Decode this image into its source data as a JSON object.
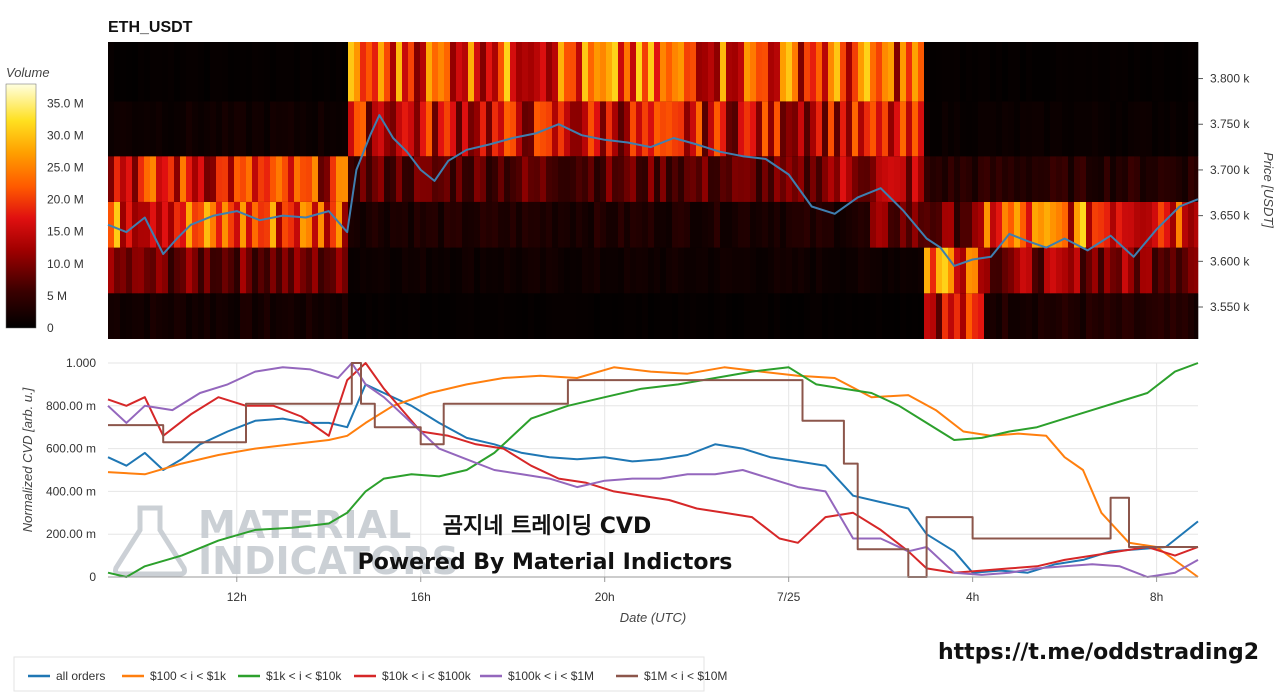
{
  "header": {
    "title": "ETH_USDT"
  },
  "overlay": {
    "line1": "곰지네 트레이딩 CVD",
    "line2": "Powered By Material Indictors",
    "url": "https://t.me/oddstrading2"
  },
  "watermark": {
    "line1": "MATERIAL",
    "line2": "INDICATORS"
  },
  "colors": {
    "all_orders": "#1f77b4",
    "b100_1k": "#ff7f0e",
    "b1k_10k": "#2ca02c",
    "b10k_100k": "#d62728",
    "b100k_1m": "#9467bd",
    "b1m_10m": "#8c564b",
    "price_line": "#3f7fb0"
  },
  "chart_data": [
    {
      "type": "heatmap",
      "title": "ETH_USDT",
      "ylabel": "Price [USDT]",
      "y_ticks": [
        "3.550 k",
        "3.600 k",
        "3.650 k",
        "3.700 k",
        "3.750 k",
        "3.800 k"
      ],
      "y_tick_values": [
        3550,
        3600,
        3650,
        3700,
        3750,
        3800
      ],
      "ylim": [
        3515,
        3840
      ],
      "x_range_hours": [
        9.2,
        32.9
      ],
      "price_bins": [
        [
          3515,
          3565
        ],
        [
          3565,
          3615
        ],
        [
          3615,
          3665
        ],
        [
          3665,
          3715
        ],
        [
          3715,
          3775
        ],
        [
          3775,
          3840
        ]
      ],
      "colorbar": {
        "label": "Volume",
        "ticks": [
          "0",
          "5 M",
          "10.0 M",
          "15.0 M",
          "20.0 M",
          "25.0 M",
          "30.0 M",
          "35.0 M"
        ],
        "tick_values": [
          0,
          5,
          10,
          15,
          20,
          25,
          30,
          35
        ],
        "range": [
          0,
          38
        ]
      },
      "bin_volume_profile": [
        {
          "bin": 0,
          "segments": [
            {
              "x0": 9.2,
              "x1": 14.4,
              "v": 2
            },
            {
              "x0": 14.4,
              "x1": 26.9,
              "v": 0.5
            },
            {
              "x0": 26.9,
              "x1": 28.2,
              "v": 16
            },
            {
              "x0": 28.2,
              "x1": 32.9,
              "v": 3
            }
          ]
        },
        {
          "bin": 1,
          "segments": [
            {
              "x0": 9.2,
              "x1": 14.4,
              "v": 9
            },
            {
              "x0": 14.4,
              "x1": 26.9,
              "v": 1.5
            },
            {
              "x0": 26.9,
              "x1": 28.2,
              "v": 28
            },
            {
              "x0": 28.2,
              "x1": 32.9,
              "v": 11
            }
          ]
        },
        {
          "bin": 2,
          "segments": [
            {
              "x0": 9.2,
              "x1": 14.4,
              "v": 22
            },
            {
              "x0": 14.4,
              "x1": 25.8,
              "v": 3
            },
            {
              "x0": 25.8,
              "x1": 28.2,
              "v": 9
            },
            {
              "x0": 28.2,
              "x1": 32.9,
              "v": 22
            }
          ]
        },
        {
          "bin": 3,
          "segments": [
            {
              "x0": 9.2,
              "x1": 14.4,
              "v": 18
            },
            {
              "x0": 14.4,
              "x1": 24.6,
              "v": 8
            },
            {
              "x0": 24.6,
              "x1": 26.9,
              "v": 13
            },
            {
              "x0": 26.9,
              "x1": 32.9,
              "v": 4
            }
          ]
        },
        {
          "bin": 4,
          "segments": [
            {
              "x0": 9.2,
              "x1": 14.4,
              "v": 1.5
            },
            {
              "x0": 14.4,
              "x1": 26.9,
              "v": 16
            },
            {
              "x0": 26.9,
              "x1": 32.9,
              "v": 1
            }
          ]
        },
        {
          "bin": 5,
          "segments": [
            {
              "x0": 9.2,
              "x1": 14.4,
              "v": 0.5
            },
            {
              "x0": 14.4,
              "x1": 26.9,
              "v": 22
            },
            {
              "x0": 26.9,
              "x1": 32.9,
              "v": 0.5
            }
          ]
        }
      ],
      "price_series": {
        "x": [
          9.2,
          9.6,
          10.0,
          10.4,
          10.7,
          11.0,
          11.5,
          12.0,
          12.5,
          13.0,
          13.5,
          14.0,
          14.4,
          14.6,
          14.9,
          15.1,
          15.4,
          15.7,
          16.0,
          16.3,
          16.6,
          17.0,
          17.5,
          18.0,
          18.5,
          19.0,
          19.5,
          20.0,
          20.5,
          21.0,
          21.5,
          22.0,
          22.5,
          23.0,
          23.5,
          24.0,
          24.5,
          25.0,
          25.5,
          26.0,
          26.5,
          27.0,
          27.3,
          27.6,
          28.0,
          28.4,
          28.8,
          29.2,
          29.6,
          30.0,
          30.5,
          31.0,
          31.5,
          32.0,
          32.5,
          32.9
        ],
        "y": [
          3640,
          3632,
          3648,
          3608,
          3625,
          3640,
          3650,
          3655,
          3645,
          3650,
          3648,
          3655,
          3632,
          3700,
          3738,
          3760,
          3735,
          3720,
          3700,
          3688,
          3710,
          3722,
          3728,
          3735,
          3740,
          3750,
          3738,
          3733,
          3730,
          3725,
          3735,
          3728,
          3720,
          3715,
          3712,
          3695,
          3660,
          3652,
          3670,
          3680,
          3655,
          3625,
          3615,
          3595,
          3602,
          3605,
          3630,
          3622,
          3615,
          3625,
          3612,
          3628,
          3605,
          3635,
          3660,
          3668
        ]
      }
    },
    {
      "type": "line",
      "xlabel": "Date (UTC)",
      "ylabel": "Normalized CVD [arb. u.]",
      "x_range_hours": [
        9.2,
        32.9
      ],
      "ylim": [
        0,
        1
      ],
      "x_ticks": [
        {
          "label": "12h",
          "value": 12
        },
        {
          "label": "16h",
          "value": 16
        },
        {
          "label": "20h",
          "value": 20
        },
        {
          "label": "7/25",
          "value": 24
        },
        {
          "label": "4h",
          "value": 28
        },
        {
          "label": "8h",
          "value": 32
        }
      ],
      "y_ticks": [
        {
          "label": "0",
          "value": 0
        },
        {
          "label": "200.00 m",
          "value": 0.2
        },
        {
          "label": "400.00 m",
          "value": 0.4
        },
        {
          "label": "600.00 m",
          "value": 0.6
        },
        {
          "label": "800.00 m",
          "value": 0.8
        },
        {
          "label": "1.000",
          "value": 1.0
        }
      ],
      "series": [
        {
          "name": "all orders",
          "color_key": "all_orders",
          "x": [
            9.2,
            9.6,
            10.0,
            10.4,
            10.8,
            11.2,
            11.8,
            12.4,
            13.0,
            13.5,
            14.0,
            14.4,
            14.8,
            15.2,
            15.8,
            16.4,
            17.0,
            17.6,
            18.2,
            18.8,
            19.4,
            20.0,
            20.6,
            21.2,
            21.8,
            22.4,
            23.0,
            23.6,
            24.2,
            24.8,
            25.4,
            26.0,
            26.6,
            27.0,
            27.6,
            28.0,
            28.6,
            29.2,
            29.8,
            30.4,
            31.0,
            31.6,
            32.2,
            32.9
          ],
          "y": [
            0.56,
            0.52,
            0.58,
            0.5,
            0.55,
            0.62,
            0.68,
            0.73,
            0.74,
            0.72,
            0.72,
            0.7,
            0.9,
            0.86,
            0.8,
            0.72,
            0.65,
            0.62,
            0.58,
            0.56,
            0.55,
            0.56,
            0.54,
            0.55,
            0.57,
            0.62,
            0.6,
            0.56,
            0.54,
            0.52,
            0.38,
            0.35,
            0.32,
            0.2,
            0.12,
            0.02,
            0.03,
            0.02,
            0.06,
            0.08,
            0.12,
            0.13,
            0.14,
            0.26
          ]
        },
        {
          "name": "$100 < i < $1k",
          "color_key": "b100_1k",
          "x": [
            9.2,
            10.0,
            10.8,
            11.6,
            12.4,
            13.2,
            14.0,
            14.4,
            14.8,
            15.4,
            16.2,
            17.0,
            17.8,
            18.6,
            19.4,
            20.2,
            21.0,
            21.8,
            22.6,
            23.4,
            24.2,
            25.0,
            25.8,
            26.6,
            27.2,
            27.8,
            28.4,
            29.0,
            29.6,
            30.0,
            30.4,
            30.8,
            31.4,
            32.0,
            32.9
          ],
          "y": [
            0.49,
            0.48,
            0.53,
            0.57,
            0.6,
            0.62,
            0.64,
            0.66,
            0.72,
            0.8,
            0.86,
            0.9,
            0.93,
            0.94,
            0.93,
            0.98,
            0.96,
            0.95,
            0.98,
            0.96,
            0.94,
            0.93,
            0.84,
            0.85,
            0.78,
            0.68,
            0.66,
            0.67,
            0.66,
            0.56,
            0.5,
            0.3,
            0.16,
            0.14,
            0.0
          ]
        },
        {
          "name": "$1k < i < $10k",
          "color_key": "b1k_10k",
          "x": [
            9.2,
            9.6,
            10.0,
            10.8,
            11.6,
            12.4,
            13.2,
            14.0,
            14.4,
            14.8,
            15.2,
            15.8,
            16.4,
            17.0,
            17.6,
            18.4,
            19.2,
            20.0,
            20.8,
            21.6,
            22.4,
            23.2,
            24.0,
            24.6,
            25.2,
            25.8,
            26.4,
            27.0,
            27.6,
            28.2,
            28.8,
            29.4,
            30.0,
            30.6,
            31.2,
            31.8,
            32.4,
            32.9
          ],
          "y": [
            0.02,
            0.0,
            0.05,
            0.1,
            0.17,
            0.22,
            0.23,
            0.25,
            0.3,
            0.4,
            0.46,
            0.48,
            0.47,
            0.5,
            0.58,
            0.74,
            0.8,
            0.84,
            0.88,
            0.9,
            0.93,
            0.96,
            0.98,
            0.9,
            0.88,
            0.86,
            0.8,
            0.72,
            0.64,
            0.65,
            0.68,
            0.7,
            0.74,
            0.78,
            0.82,
            0.86,
            0.96,
            1.0
          ]
        },
        {
          "name": "$10k < i < $100k",
          "color_key": "b10k_100k",
          "x": [
            9.2,
            9.6,
            10.0,
            10.4,
            11.0,
            11.6,
            12.2,
            12.8,
            13.4,
            14.0,
            14.4,
            14.8,
            15.2,
            15.6,
            16.0,
            16.6,
            17.2,
            17.8,
            18.4,
            19.0,
            19.6,
            20.2,
            20.8,
            21.4,
            22.0,
            22.6,
            23.2,
            23.8,
            24.2,
            24.8,
            25.4,
            26.0,
            26.6,
            27.0,
            27.6,
            28.2,
            28.8,
            29.4,
            30.0,
            30.6,
            31.2,
            31.8,
            32.4,
            32.9
          ],
          "y": [
            0.83,
            0.8,
            0.84,
            0.66,
            0.76,
            0.84,
            0.8,
            0.8,
            0.75,
            0.66,
            0.92,
            1.0,
            0.88,
            0.78,
            0.68,
            0.66,
            0.62,
            0.6,
            0.52,
            0.46,
            0.44,
            0.4,
            0.38,
            0.36,
            0.32,
            0.3,
            0.28,
            0.18,
            0.16,
            0.28,
            0.3,
            0.22,
            0.12,
            0.04,
            0.02,
            0.03,
            0.04,
            0.05,
            0.08,
            0.1,
            0.12,
            0.14,
            0.1,
            0.14
          ]
        },
        {
          "name": "$100k < i < $1M",
          "color_key": "b100k_1m",
          "x": [
            9.2,
            9.6,
            10.0,
            10.6,
            11.2,
            11.8,
            12.4,
            13.0,
            13.6,
            14.2,
            14.5,
            14.8,
            15.2,
            15.8,
            16.4,
            17.0,
            17.6,
            18.2,
            18.8,
            19.4,
            20.0,
            20.6,
            21.2,
            21.8,
            22.4,
            23.0,
            23.6,
            24.2,
            24.8,
            25.4,
            26.0,
            26.6,
            27.0,
            27.6,
            28.2,
            28.8,
            29.4,
            30.0,
            30.6,
            31.2,
            31.8,
            32.4,
            32.9
          ],
          "y": [
            0.8,
            0.72,
            0.8,
            0.78,
            0.86,
            0.9,
            0.96,
            0.98,
            0.97,
            0.93,
            1.0,
            0.9,
            0.84,
            0.72,
            0.6,
            0.55,
            0.5,
            0.48,
            0.46,
            0.42,
            0.45,
            0.46,
            0.46,
            0.48,
            0.48,
            0.5,
            0.46,
            0.42,
            0.4,
            0.18,
            0.18,
            0.12,
            0.14,
            0.02,
            0.01,
            0.02,
            0.04,
            0.05,
            0.06,
            0.05,
            0.0,
            0.02,
            0.08
          ]
        },
        {
          "name": "$1M < i < $10M",
          "color_key": "b1m_10m",
          "step": true,
          "x": [
            9.2,
            10.4,
            11.0,
            12.2,
            14.5,
            14.7,
            15.0,
            16.0,
            16.5,
            19.0,
            19.2,
            24.3,
            25.2,
            25.5,
            26.6,
            27.0,
            27.3,
            27.5,
            28.0,
            29.0,
            30.2,
            31.0,
            31.4,
            32.9
          ],
          "y": [
            0.71,
            0.63,
            0.63,
            0.81,
            1.0,
            0.81,
            0.7,
            0.62,
            0.81,
            0.81,
            0.92,
            0.73,
            0.53,
            0.13,
            0.0,
            0.28,
            0.28,
            0.28,
            0.18,
            0.18,
            0.18,
            0.37,
            0.14,
            0.14
          ]
        }
      ]
    }
  ]
}
